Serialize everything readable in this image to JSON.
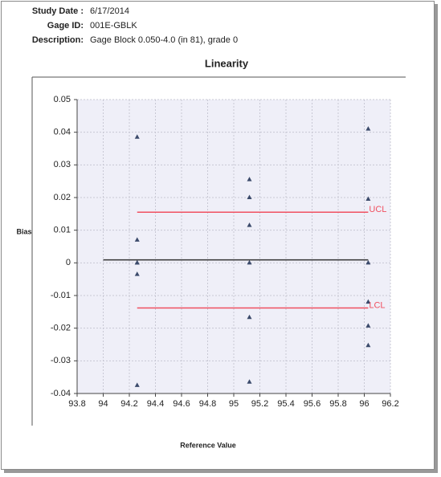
{
  "header": {
    "fields": [
      {
        "label": "Study Date :",
        "value": "6/17/2014"
      },
      {
        "label": "Gage ID:",
        "value": "001E-GBLK"
      },
      {
        "label": "Description:",
        "value": "Gage Block  0.050-4.0  (in 81), grade 0"
      }
    ]
  },
  "chart_data": {
    "type": "scatter",
    "title": "Linearity",
    "xlabel": "Reference Value",
    "ylabel": "Bias",
    "xlim": [
      93.8,
      96.2
    ],
    "xticks": [
      93.8,
      94,
      94.2,
      94.4,
      94.6,
      94.8,
      95,
      95.2,
      95.4,
      95.6,
      95.8,
      96,
      96.2
    ],
    "ylim": [
      -0.04,
      0.05
    ],
    "yticks": [
      0.05,
      0.04,
      0.03,
      0.02,
      0.01,
      0,
      -0.01,
      -0.02,
      -0.03,
      -0.04
    ],
    "grid": true,
    "series": [
      {
        "type": "scatter",
        "color": "#3b4a6b",
        "x": [
          94.26,
          94.26,
          94.26,
          94.26,
          94.26,
          94.26,
          95.12,
          95.12,
          95.12,
          95.12,
          95.12,
          95.12,
          96.03,
          96.03,
          96.03,
          96.03,
          96.03,
          96.03
        ],
        "values": [
          0.0385,
          0.007,
          0,
          0,
          -0.0035,
          -0.0375,
          0.0255,
          0.02,
          0.0115,
          0,
          -0.0167,
          -0.0365,
          0.041,
          0.0195,
          0,
          -0.012,
          -0.0193,
          -0.0253
        ]
      },
      {
        "type": "line",
        "color": "#333333",
        "x": [
          94,
          96.03
        ],
        "values": [
          0.0009,
          0.0009
        ]
      },
      {
        "type": "line",
        "name": "UCL",
        "color": "#f05060",
        "x": [
          94.26,
          96.03
        ],
        "values": [
          0.0155,
          0.0155
        ]
      },
      {
        "type": "line",
        "name": "LCL",
        "color": "#f05060",
        "x": [
          94.26,
          96.03
        ],
        "values": [
          -0.0138,
          -0.0138
        ]
      }
    ]
  }
}
